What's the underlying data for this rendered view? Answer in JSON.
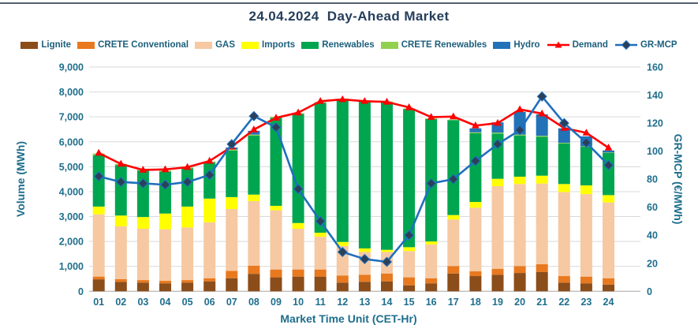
{
  "page": {
    "title": "24.04.2024  Day-Ahead Market"
  },
  "legend": [
    {
      "label": "Lignite",
      "type": "box",
      "color": "#8b4d1a"
    },
    {
      "label": "CRETE Conventional",
      "type": "box",
      "color": "#e8791f"
    },
    {
      "label": "GAS",
      "type": "box",
      "color": "#f6c9a2"
    },
    {
      "label": "Imports",
      "type": "box",
      "color": "#ffff00"
    },
    {
      "label": "Renewables",
      "type": "box",
      "color": "#00a64f"
    },
    {
      "label": "CRETE Renewables",
      "type": "box",
      "color": "#92d050"
    },
    {
      "label": "Hydro",
      "type": "box",
      "color": "#2272b8"
    },
    {
      "label": "Demand",
      "type": "line-triangle",
      "color": "#fe0000"
    },
    {
      "label": "GR-MCP",
      "type": "line-diamond",
      "color": "#1f6fbe",
      "marker_color": "#2b4059"
    }
  ],
  "chart_data": {
    "type": "bar",
    "combo": "stacked-bar-with-lines",
    "title": "24.04.2024  Day-Ahead Market",
    "xlabel": "Market Time Unit (CET-Hr)",
    "ylabel_left": "Volume (MWh)",
    "ylabel_right": "GR-MCP (€/MWh)",
    "ylim_left": [
      0,
      9000
    ],
    "ylim_right": [
      0,
      160
    ],
    "yticks_left": [
      "0",
      "1,000",
      "2,000",
      "3,000",
      "4,000",
      "5,000",
      "6,000",
      "7,000",
      "8,000",
      "9,000"
    ],
    "yticks_right": [
      "0",
      "20",
      "40",
      "60",
      "80",
      "100",
      "120",
      "140",
      "160"
    ],
    "grid": true,
    "legend_position": "top",
    "categories": [
      "01",
      "02",
      "03",
      "04",
      "05",
      "06",
      "07",
      "08",
      "09",
      "10",
      "11",
      "12",
      "13",
      "14",
      "15",
      "16",
      "17",
      "18",
      "19",
      "20",
      "21",
      "22",
      "23",
      "24"
    ],
    "series": [
      {
        "name": "Lignite",
        "kind": "bar",
        "color": "#8b4d1a",
        "values": [
          480,
          380,
          350,
          320,
          350,
          400,
          525,
          700,
          560,
          590,
          590,
          350,
          380,
          400,
          240,
          320,
          715,
          610,
          665,
          735,
          770,
          350,
          320,
          270
        ]
      },
      {
        "name": "CRETE Conventional",
        "kind": "bar",
        "color": "#e8791f",
        "values": [
          110,
          110,
          100,
          100,
          100,
          125,
          295,
          330,
          315,
          285,
          285,
          285,
          285,
          315,
          320,
          205,
          300,
          190,
          240,
          280,
          315,
          260,
          270,
          255
        ]
      },
      {
        "name": "GAS",
        "kind": "bar",
        "color": "#f6c9a2",
        "values": [
          2500,
          2120,
          2060,
          2070,
          2110,
          2245,
          2480,
          2590,
          2375,
          1635,
          1315,
          1185,
          915,
          865,
          1055,
          1355,
          1865,
          2555,
          3315,
          3290,
          3240,
          3370,
          3310,
          3040
        ]
      },
      {
        "name": "Imports",
        "kind": "bar",
        "color": "#ffff00",
        "values": [
          310,
          430,
          470,
          630,
          840,
          950,
          480,
          260,
          180,
          230,
          160,
          160,
          140,
          85,
          155,
          120,
          180,
          230,
          295,
          295,
          315,
          325,
          350,
          295
        ]
      },
      {
        "name": "Renewables",
        "kind": "bar",
        "color": "#00a64f",
        "values": [
          2060,
          2020,
          1870,
          1690,
          1540,
          1450,
          1870,
          2370,
          3530,
          4380,
          5210,
          5720,
          5900,
          5925,
          5540,
          4910,
          3810,
          2755,
          1815,
          1655,
          1560,
          1630,
          1550,
          1690
        ]
      },
      {
        "name": "CRETE Renewables",
        "kind": "bar",
        "color": "#92d050",
        "values": [
          70,
          50,
          30,
          30,
          30,
          40,
          40,
          40,
          40,
          30,
          30,
          30,
          30,
          30,
          30,
          30,
          20,
          40,
          40,
          35,
          40,
          25,
          20,
          20
        ]
      },
      {
        "name": "Hydro",
        "kind": "bar",
        "color": "#2272b8",
        "values": [
          0,
          0,
          0,
          0,
          0,
          0,
          80,
          150,
          0,
          0,
          0,
          0,
          0,
          0,
          0,
          0,
          0,
          160,
          410,
          910,
          860,
          580,
          400,
          80
        ]
      },
      {
        "name": "Demand",
        "kind": "line",
        "axis": "left",
        "color": "#fe0000",
        "marker": "triangle",
        "values": [
          5550,
          5110,
          4870,
          4890,
          4980,
          5230,
          5800,
          6490,
          6960,
          7170,
          7630,
          7700,
          7630,
          7600,
          7380,
          6990,
          7010,
          6650,
          6750,
          7300,
          7130,
          6550,
          6360,
          5760
        ]
      },
      {
        "name": "GR-MCP",
        "kind": "line",
        "axis": "right",
        "color": "#1f6fbe",
        "marker": "diamond",
        "marker_color": "#2b4059",
        "values": [
          82,
          78,
          77,
          76,
          78,
          83,
          105,
          125,
          117,
          73,
          50,
          28,
          23,
          21,
          40,
          77,
          80,
          93,
          105,
          115,
          139,
          120,
          106,
          90
        ]
      }
    ]
  }
}
